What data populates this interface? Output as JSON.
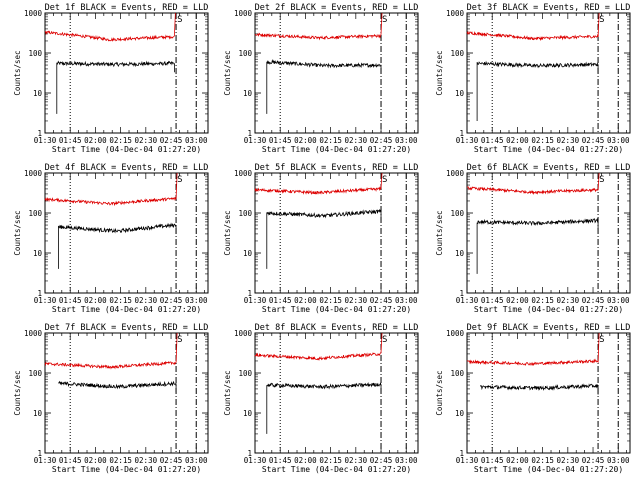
{
  "chart_data": [
    {
      "type": "line",
      "title": "Det 1f BLACK = Events, RED = LLD",
      "xlabel": "Start Time (04-Dec-04 01:27:20)",
      "ylabel": "Counts/sec",
      "ylim": [
        1,
        1000
      ],
      "yscale": "log",
      "xlim": [
        "01:30",
        "03:07"
      ],
      "xticks": [
        "01:30",
        "01:45",
        "02:00",
        "02:15",
        "02:30",
        "02:45",
        "03:00"
      ],
      "yticks": [
        "1",
        "10",
        "100",
        "1000"
      ],
      "marker_label": "S",
      "marker_time": "02:48",
      "dotted_line_time": "01:45",
      "dashdot_line_time": "03:00",
      "series": [
        {
          "name": "Events",
          "color": "#000000",
          "start": "01:37",
          "end": "02:47",
          "pre_spike": 3,
          "level_start": 55,
          "level_mid": 52,
          "level_end": 55
        },
        {
          "name": "LLD",
          "color": "#dd0000",
          "start": "01:30",
          "end": "02:47",
          "level_start": 330,
          "level_mid": 215,
          "level_end": 255,
          "end_spike": 1000
        }
      ]
    },
    {
      "type": "line",
      "title": "Det 2f BLACK = Events, RED = LLD",
      "xlabel": "Start Time (04-Dec-04 01:27:20)",
      "ylabel": "Counts/sec",
      "ylim": [
        1,
        1000
      ],
      "yscale": "log",
      "xlim": [
        "01:30",
        "03:07"
      ],
      "xticks": [
        "01:30",
        "01:45",
        "02:00",
        "02:15",
        "02:30",
        "02:45",
        "03:00"
      ],
      "yticks": [
        "1",
        "10",
        "100",
        "1000"
      ],
      "marker_label": "S",
      "marker_time": "02:45",
      "dotted_line_time": "01:45",
      "dashdot_line_time": "03:00",
      "series": [
        {
          "name": "Events",
          "color": "#000000",
          "start": "01:37",
          "end": "02:45",
          "pre_spike": 3,
          "level_start": 60,
          "level_mid": 48,
          "level_end": 50
        },
        {
          "name": "LLD",
          "color": "#dd0000",
          "start": "01:30",
          "end": "02:45",
          "level_start": 290,
          "level_mid": 240,
          "level_end": 270,
          "end_spike": 1000
        }
      ]
    },
    {
      "type": "line",
      "title": "Det 3f BLACK = Events, RED = LLD",
      "xlabel": "Start Time (04-Dec-04 01:27:20)",
      "ylabel": "Counts/sec",
      "ylim": [
        1,
        1000
      ],
      "yscale": "log",
      "xlim": [
        "01:30",
        "03:07"
      ],
      "xticks": [
        "01:30",
        "01:45",
        "02:00",
        "02:15",
        "02:30",
        "02:45",
        "03:00"
      ],
      "yticks": [
        "1",
        "10",
        "100",
        "1000"
      ],
      "marker_label": "S",
      "marker_time": "02:48",
      "dotted_line_time": "01:45",
      "dashdot_line_time": "03:00",
      "series": [
        {
          "name": "Events",
          "color": "#000000",
          "start": "01:36",
          "end": "02:48",
          "pre_spike": 2,
          "level_start": 55,
          "level_mid": 48,
          "level_end": 52
        },
        {
          "name": "LLD",
          "color": "#dd0000",
          "start": "01:30",
          "end": "02:48",
          "level_start": 320,
          "level_mid": 230,
          "level_end": 260,
          "end_spike": 1000
        }
      ]
    },
    {
      "type": "line",
      "title": "Det 4f BLACK = Events, RED = LLD",
      "xlabel": "Start Time (04-Dec-04 01:27:20)",
      "ylabel": "Counts/sec",
      "ylim": [
        1,
        1000
      ],
      "yscale": "log",
      "xlim": [
        "01:30",
        "03:07"
      ],
      "xticks": [
        "01:30",
        "01:45",
        "02:00",
        "02:15",
        "02:30",
        "02:45",
        "03:00"
      ],
      "yticks": [
        "1",
        "10",
        "100",
        "1000"
      ],
      "marker_label": "S",
      "marker_time": "02:48",
      "dotted_line_time": "01:45",
      "dashdot_line_time": "03:00",
      "series": [
        {
          "name": "Events",
          "color": "#000000",
          "start": "01:38",
          "end": "02:48",
          "pre_spike": 4,
          "level_start": 45,
          "level_mid": 35,
          "level_end": 50
        },
        {
          "name": "LLD",
          "color": "#dd0000",
          "start": "01:30",
          "end": "02:48",
          "level_start": 220,
          "level_mid": 170,
          "level_end": 230,
          "end_spike": 1000
        }
      ]
    },
    {
      "type": "line",
      "title": "Det 5f BLACK = Events, RED = LLD",
      "xlabel": "Start Time (04-Dec-04 01:27:20)",
      "ylabel": "Counts/sec",
      "ylim": [
        1,
        1000
      ],
      "yscale": "log",
      "xlim": [
        "01:30",
        "03:07"
      ],
      "xticks": [
        "01:30",
        "01:45",
        "02:00",
        "02:15",
        "02:30",
        "02:45",
        "03:00"
      ],
      "yticks": [
        "1",
        "10",
        "100",
        "1000"
      ],
      "marker_label": "S",
      "marker_time": "02:45",
      "dotted_line_time": "01:45",
      "dashdot_line_time": "03:00",
      "series": [
        {
          "name": "Events",
          "color": "#000000",
          "start": "01:37",
          "end": "02:45",
          "pre_spike": 4,
          "level_start": 100,
          "level_mid": 85,
          "level_end": 110
        },
        {
          "name": "LLD",
          "color": "#dd0000",
          "start": "01:30",
          "end": "02:45",
          "level_start": 380,
          "level_mid": 320,
          "level_end": 400,
          "end_spike": 1000
        }
      ]
    },
    {
      "type": "line",
      "title": "Det 6f BLACK = Events, RED = LLD",
      "xlabel": "Start Time (04-Dec-04 01:27:20)",
      "ylabel": "Counts/sec",
      "ylim": [
        1,
        1000
      ],
      "yscale": "log",
      "xlim": [
        "01:30",
        "03:07"
      ],
      "xticks": [
        "01:30",
        "01:45",
        "02:00",
        "02:15",
        "02:30",
        "02:45",
        "03:00"
      ],
      "yticks": [
        "1",
        "10",
        "100",
        "1000"
      ],
      "marker_label": "S",
      "marker_time": "02:48",
      "dotted_line_time": "01:45",
      "dashdot_line_time": "03:00",
      "series": [
        {
          "name": "Events",
          "color": "#000000",
          "start": "01:36",
          "end": "02:48",
          "pre_spike": 3,
          "level_start": 60,
          "level_mid": 55,
          "level_end": 65
        },
        {
          "name": "LLD",
          "color": "#dd0000",
          "start": "01:30",
          "end": "02:48",
          "level_start": 420,
          "level_mid": 330,
          "level_end": 380,
          "end_spike": 1000
        }
      ]
    },
    {
      "type": "line",
      "title": "Det 7f BLACK = Events, RED = LLD",
      "xlabel": "Start Time (04-Dec-04 01:27:20)",
      "ylabel": "Counts/sec",
      "ylim": [
        1,
        1000
      ],
      "yscale": "log",
      "xlim": [
        "01:30",
        "03:07"
      ],
      "xticks": [
        "01:30",
        "01:45",
        "02:00",
        "02:15",
        "02:30",
        "02:45",
        "03:00"
      ],
      "yticks": [
        "1",
        "10",
        "100",
        "1000"
      ],
      "marker_label": "S",
      "marker_time": "02:48",
      "dotted_line_time": "01:45",
      "dashdot_line_time": "03:00",
      "series": [
        {
          "name": "Events",
          "color": "#000000",
          "start": "01:38",
          "end": "02:48",
          "pre_spike": null,
          "level_start": 55,
          "level_mid": 45,
          "level_end": 55
        },
        {
          "name": "LLD",
          "color": "#dd0000",
          "start": "01:30",
          "end": "02:48",
          "level_start": 170,
          "level_mid": 140,
          "level_end": 180,
          "end_spike": 1000
        }
      ]
    },
    {
      "type": "line",
      "title": "Det 8f BLACK = Events, RED = LLD",
      "xlabel": "Start Time (04-Dec-04 01:27:20)",
      "ylabel": "Counts/sec",
      "ylim": [
        1,
        1000
      ],
      "yscale": "log",
      "xlim": [
        "01:30",
        "03:07"
      ],
      "xticks": [
        "01:30",
        "01:45",
        "02:00",
        "02:15",
        "02:30",
        "02:45",
        "03:00"
      ],
      "yticks": [
        "1",
        "10",
        "100",
        "1000"
      ],
      "marker_label": "S",
      "marker_time": "02:45",
      "dotted_line_time": "01:45",
      "dashdot_line_time": "03:00",
      "series": [
        {
          "name": "Events",
          "color": "#000000",
          "start": "01:37",
          "end": "02:45",
          "pre_spike": 3,
          "level_start": 50,
          "level_mid": 45,
          "level_end": 52
        },
        {
          "name": "LLD",
          "color": "#dd0000",
          "start": "01:30",
          "end": "02:45",
          "level_start": 280,
          "level_mid": 230,
          "level_end": 300,
          "end_spike": 1000
        }
      ]
    },
    {
      "type": "line",
      "title": "Det 9f BLACK = Events, RED = LLD",
      "xlabel": "Start Time (04-Dec-04 01:27:20)",
      "ylabel": "Counts/sec",
      "ylim": [
        1,
        1000
      ],
      "yscale": "log",
      "xlim": [
        "01:30",
        "03:07"
      ],
      "xticks": [
        "01:30",
        "01:45",
        "02:00",
        "02:15",
        "02:30",
        "02:45",
        "03:00"
      ],
      "yticks": [
        "1",
        "10",
        "100",
        "1000"
      ],
      "marker_label": "S",
      "marker_time": "02:48",
      "dotted_line_time": "01:45",
      "dashdot_line_time": "03:00",
      "series": [
        {
          "name": "Events",
          "color": "#000000",
          "start": "01:38",
          "end": "02:48",
          "pre_spike": null,
          "level_start": 45,
          "level_mid": 42,
          "level_end": 48
        },
        {
          "name": "LLD",
          "color": "#dd0000",
          "start": "01:30",
          "end": "02:48",
          "level_start": 190,
          "level_mid": 170,
          "level_end": 200,
          "end_spike": 1000
        }
      ]
    }
  ]
}
